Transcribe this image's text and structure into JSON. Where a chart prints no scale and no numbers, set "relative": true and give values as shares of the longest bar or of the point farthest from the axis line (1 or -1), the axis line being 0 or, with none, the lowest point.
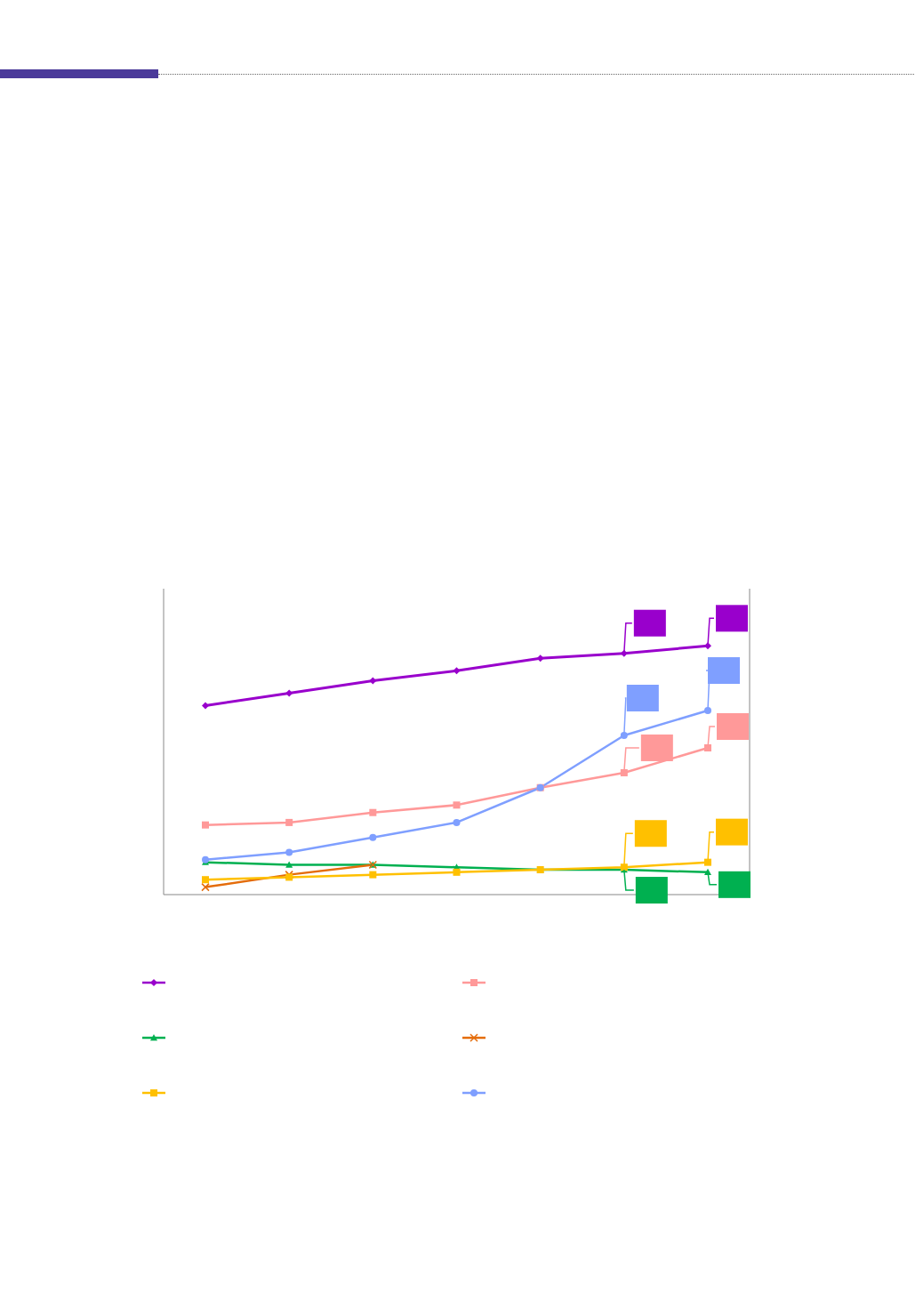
{
  "chart_data": {
    "type": "line",
    "relative": true,
    "categories": [
      null,
      null,
      null,
      null,
      null,
      null,
      null
    ],
    "series": [
      {
        "color": "#9900cc",
        "marker": "diamond",
        "values": [
          0.76,
          0.81,
          0.86,
          0.9,
          0.95,
          0.97,
          1
        ]
      },
      {
        "color": "#ff9999",
        "marker": "square",
        "values": [
          0.28,
          0.29,
          0.33,
          0.36,
          0.43,
          0.49,
          0.59
        ]
      },
      {
        "color": "#00b050",
        "marker": "triangle",
        "values": [
          0.13,
          0.12,
          0.12,
          0.11,
          0.1,
          0.1,
          0.09
        ]
      },
      {
        "color": "#e46c0a",
        "marker": "cross",
        "values": [
          0.03,
          0.08,
          0.12,
          null,
          null,
          null,
          null
        ]
      },
      {
        "color": "#ffc000",
        "marker": "square",
        "values": [
          0.06,
          0.07,
          0.08,
          0.09,
          0.1,
          0.11,
          0.13
        ]
      },
      {
        "color": "#7f9fff",
        "marker": "circle",
        "values": [
          0.14,
          0.17,
          0.23,
          0.29,
          0.43,
          0.64,
          0.74
        ]
      }
    ]
  }
}
